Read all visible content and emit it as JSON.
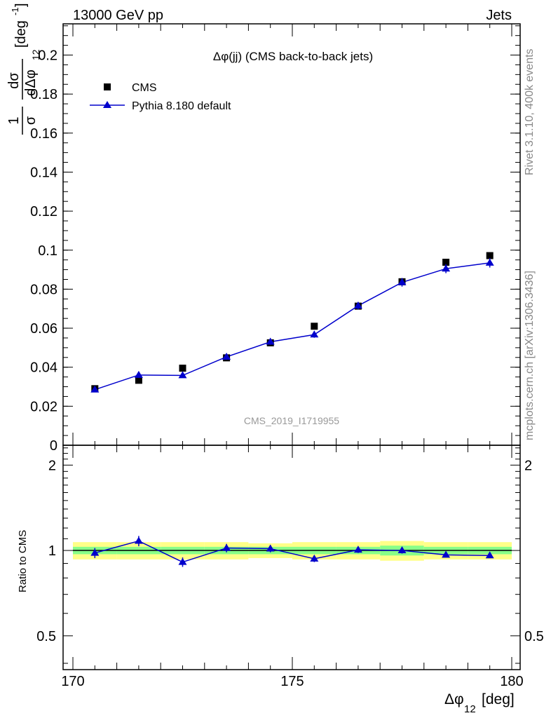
{
  "header": {
    "left_title": "13000 GeV pp",
    "right_title": "Jets"
  },
  "side_labels": {
    "rivet": "Rivet 3.1.10,  400k events",
    "mcplots": "mcplots.cern.ch [arXiv:1306.3436]"
  },
  "colors": {
    "data": "#000000",
    "mc": "#0000cc",
    "band_inner": "#88ff88",
    "band_outer": "#ffff88",
    "watermark": "#999999"
  },
  "chart_data": [
    {
      "type": "scatter",
      "title": "Δφ(jj) (CMS back-to-back jets)",
      "watermark": "CMS_2019_I1719955",
      "ylabel": "1/σ dσ/dΔφ_12 [deg^-1]",
      "xlim": [
        170,
        180
      ],
      "ylim": [
        0,
        0.216
      ],
      "yticks": [
        0,
        0.02,
        0.04,
        0.06,
        0.08,
        0.1,
        0.12,
        0.14,
        0.16,
        0.18,
        0.2
      ],
      "ytick_labels": [
        "0",
        "0.02",
        "0.04",
        "0.06",
        "0.08",
        "0.1",
        "0.12",
        "0.14",
        "0.16",
        "0.18",
        "0.2"
      ],
      "x": [
        170.5,
        171.5,
        172.5,
        173.5,
        174.5,
        175.5,
        176.5,
        177.5,
        178.5,
        179.5
      ],
      "series": [
        {
          "name": "CMS",
          "marker": "square",
          "values": [
            0.029,
            0.0333,
            0.0395,
            0.0448,
            0.0525,
            0.061,
            0.0713,
            0.0838,
            0.0938,
            0.0972
          ]
        },
        {
          "name": "Pythia 8.180 default",
          "marker": "triangle",
          "values": [
            0.0285,
            0.036,
            0.0358,
            0.0453,
            0.053,
            0.0567,
            0.0715,
            0.0835,
            0.0905,
            0.0935
          ],
          "errors": [
            0.0012,
            0.0015,
            0.0013,
            0.0015,
            0.0015,
            0.0016,
            0.0019,
            0.0022,
            0.0023,
            0.0024
          ]
        }
      ],
      "legend_position": "top-left"
    },
    {
      "type": "line",
      "ylabel": "Ratio to CMS",
      "xlabel": "Δφ_12 [deg]",
      "xlim": [
        170,
        180
      ],
      "ylim": [
        0.38,
        2.35
      ],
      "yscale": "log",
      "yticks": [
        0.5,
        1,
        2
      ],
      "ytick_labels": [
        "0.5",
        "1",
        "2"
      ],
      "xticks": [
        170,
        175,
        180
      ],
      "xtick_labels": [
        "170",
        "175",
        "180"
      ],
      "x": [
        170.5,
        171.5,
        172.5,
        173.5,
        174.5,
        175.5,
        176.5,
        177.5,
        178.5,
        179.5
      ],
      "series": [
        {
          "name": "Pythia 8.180 default",
          "values": [
            0.98,
            1.08,
            0.91,
            1.02,
            1.015,
            0.935,
            1.005,
            1.0,
            0.965,
            0.96
          ],
          "errors": [
            0.04,
            0.045,
            0.035,
            0.035,
            0.03,
            0.025,
            0.025,
            0.025,
            0.02,
            0.02
          ]
        }
      ],
      "band_inner": [
        0.03,
        0.03,
        0.03,
        0.03,
        0.03,
        0.03,
        0.03,
        0.04,
        0.03,
        0.03
      ],
      "band_outer": [
        0.07,
        0.07,
        0.07,
        0.07,
        0.06,
        0.07,
        0.07,
        0.08,
        0.07,
        0.07
      ]
    }
  ]
}
